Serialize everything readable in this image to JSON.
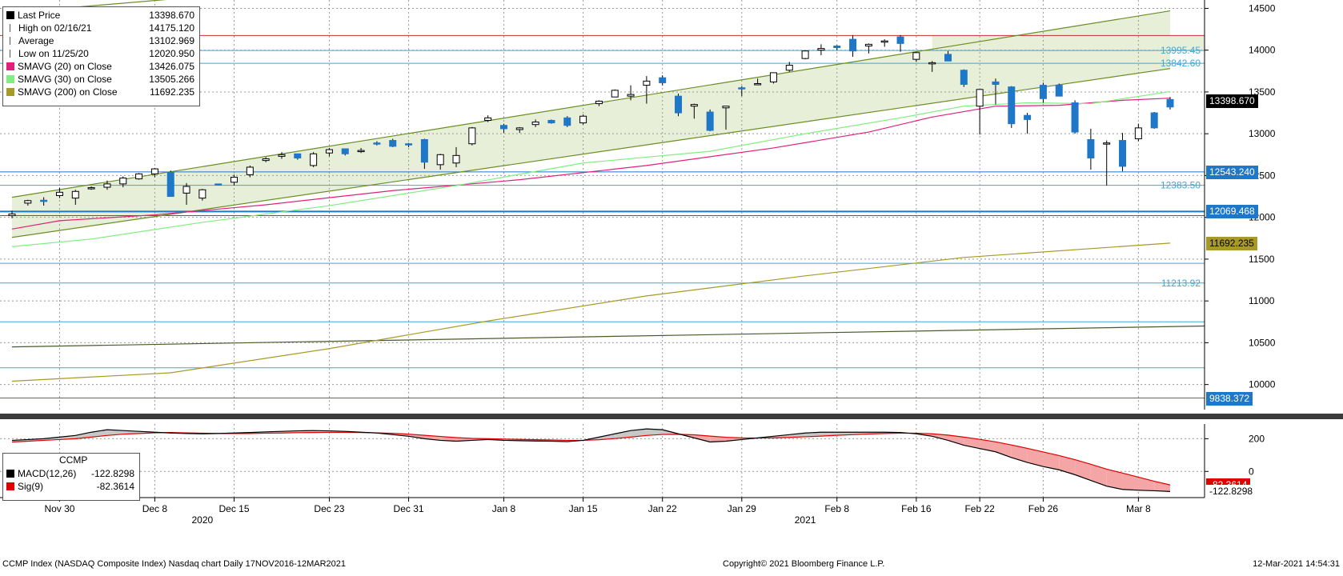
{
  "legend_main": {
    "rows": [
      {
        "label": "Last Price",
        "value": "13398.670",
        "swatch": "#000000",
        "marker": "square"
      },
      {
        "label": "High on 02/16/21",
        "value": "14175.120",
        "swatch": "#555555",
        "marker": "high"
      },
      {
        "label": "Average",
        "value": "13102.969",
        "swatch": "#555555",
        "marker": "avg"
      },
      {
        "label": "Low on 11/25/20",
        "value": "12020.950",
        "swatch": "#555555",
        "marker": "low"
      },
      {
        "label": "SMAVG (20)  on Close",
        "value": "13426.075",
        "swatch": "#e0207a",
        "marker": "square"
      },
      {
        "label": "SMAVG (30)  on Close",
        "value": "13505.266",
        "swatch": "#80ee80",
        "marker": "square"
      },
      {
        "label": "SMAVG (200)  on Close",
        "value": "11692.235",
        "swatch": "#a89a28",
        "marker": "square"
      }
    ]
  },
  "legend_macd": {
    "title": "CCMP",
    "rows": [
      {
        "label": "MACD(12,26)",
        "value": "-122.8298",
        "swatch": "#000000"
      },
      {
        "label": "Sig(9)",
        "value": "-82.3614",
        "swatch": "#e00000"
      }
    ]
  },
  "axis_tags": [
    {
      "text": "13398.670",
      "value": 13398.67,
      "bg": "#000000",
      "fg": "#ffffff"
    },
    {
      "text": "12543.240",
      "value": 12543.24,
      "bg": "#1f77c8",
      "fg": "#ffffff"
    },
    {
      "text": "12069.468",
      "value": 12069.468,
      "bg": "#1f77c8",
      "fg": "#ffffff"
    },
    {
      "text": "11692.235",
      "value": 11692.235,
      "bg": "#a89a28",
      "fg": "#000000"
    },
    {
      "text": "9838.372",
      "value": 9838.372,
      "bg": "#1f77c8",
      "fg": "#ffffff"
    }
  ],
  "level_labels": [
    {
      "text": "13995.45",
      "value": 13995.45
    },
    {
      "text": "13842.60",
      "value": 13842.6
    },
    {
      "text": "12383.50",
      "value": 12383.5
    },
    {
      "text": "11213.92",
      "value": 11213.92
    }
  ],
  "macd_axis_tags": [
    {
      "text": "-82.3614",
      "value": -82.3614,
      "bg": "#e00000",
      "fg": "#ffffff"
    },
    {
      "text": "-122.8298",
      "value": -122.8298,
      "bg": "#ffffff",
      "fg": "#000000"
    }
  ],
  "footer": {
    "left": "CCMP Index (NASDAQ Composite Index) Nasdaq chart  Daily 17NOV2016-12MAR2021",
    "center": "Copyright© 2021 Bloomberg Finance L.P.",
    "right": "12-Mar-2021  14:54:31"
  },
  "chart_data": [
    {
      "type": "candlestick",
      "title": "CCMP Index (NASDAQ Composite Index) Nasdaq chart",
      "ylim": [
        9700,
        14600
      ],
      "yticks": [
        10000,
        10500,
        11000,
        11500,
        12000,
        12500,
        13000,
        13500,
        14000,
        14500
      ],
      "xlabels": [
        "Nov 30",
        "Dec 8",
        "Dec 15",
        "Dec 23",
        "Dec 31",
        "Jan 8",
        "Jan 15",
        "Jan 22",
        "Jan 29",
        "Feb 8",
        "Feb 16",
        "Feb 22",
        "Feb 26",
        "Mar 8"
      ],
      "xlabel_index": [
        3,
        9,
        14,
        20,
        25,
        31,
        36,
        41,
        46,
        52,
        57,
        61,
        65,
        71
      ],
      "year_labels": [
        {
          "text": "2020",
          "index": 12
        },
        {
          "text": "2021",
          "index": 50
        }
      ],
      "grid": true,
      "legend": "top-left",
      "up_color": "#ffffff",
      "down_color": "#1f77c8",
      "candles": [
        [
          12020,
          12080,
          11990,
          12040
        ],
        [
          12170,
          12210,
          12140,
          12200
        ],
        [
          12205,
          12240,
          12140,
          12190
        ],
        [
          12260,
          12355,
          12230,
          12300
        ],
        [
          12230,
          12330,
          12150,
          12310
        ],
        [
          12350,
          12370,
          12330,
          12355
        ],
        [
          12360,
          12440,
          12330,
          12400
        ],
        [
          12400,
          12490,
          12360,
          12470
        ],
        [
          12460,
          12530,
          12450,
          12520
        ],
        [
          12520,
          12590,
          12480,
          12580
        ],
        [
          12540,
          12560,
          12280,
          12250
        ],
        [
          12290,
          12410,
          12150,
          12370
        ],
        [
          12230,
          12340,
          12200,
          12330
        ],
        [
          12400,
          12400,
          12380,
          12390
        ],
        [
          12420,
          12510,
          12380,
          12480
        ],
        [
          12510,
          12620,
          12480,
          12600
        ],
        [
          12680,
          12720,
          12660,
          12700
        ],
        [
          12730,
          12780,
          12700,
          12750
        ],
        [
          12760,
          12760,
          12690,
          12710
        ],
        [
          12620,
          12780,
          12600,
          12760
        ],
        [
          12770,
          12830,
          12730,
          12810
        ],
        [
          12820,
          12820,
          12740,
          12760
        ],
        [
          12790,
          12830,
          12770,
          12800
        ],
        [
          12890,
          12910,
          12860,
          12880
        ],
        [
          12920,
          12940,
          12840,
          12850
        ],
        [
          12880,
          12890,
          12840,
          12870
        ],
        [
          12930,
          12940,
          12580,
          12660
        ],
        [
          12630,
          12760,
          12570,
          12750
        ],
        [
          12650,
          12840,
          12600,
          12740
        ],
        [
          12880,
          13080,
          12860,
          13070
        ],
        [
          13160,
          13220,
          13140,
          13190
        ],
        [
          13100,
          13120,
          13010,
          13060
        ],
        [
          13050,
          13080,
          13010,
          13070
        ],
        [
          13110,
          13170,
          13080,
          13140
        ],
        [
          13160,
          13170,
          13120,
          13130
        ],
        [
          13190,
          13210,
          13080,
          13100
        ],
        [
          13130,
          13230,
          13110,
          13210
        ],
        [
          13360,
          13400,
          13330,
          13390
        ],
        [
          13440,
          13530,
          13440,
          13520
        ],
        [
          13450,
          13580,
          13400,
          13470
        ],
        [
          13580,
          13690,
          13360,
          13630
        ],
        [
          13670,
          13700,
          13580,
          13610
        ],
        [
          13450,
          13480,
          13210,
          13250
        ],
        [
          13330,
          13360,
          13180,
          13350
        ],
        [
          13260,
          13290,
          13030,
          13040
        ],
        [
          13310,
          13330,
          13050,
          13330
        ],
        [
          13550,
          13570,
          13450,
          13540
        ],
        [
          13590,
          13660,
          13580,
          13600
        ],
        [
          13620,
          13720,
          13600,
          13730
        ],
        [
          13760,
          13860,
          13740,
          13820
        ],
        [
          13900,
          13990,
          13890,
          13990
        ],
        [
          14000,
          14070,
          13940,
          14020
        ],
        [
          14050,
          14060,
          14000,
          14030
        ],
        [
          14130,
          14180,
          13920,
          13990
        ],
        [
          14050,
          14080,
          13960,
          14070
        ],
        [
          14100,
          14130,
          14040,
          14110
        ],
        [
          14160,
          14180,
          13980,
          14080
        ],
        [
          13890,
          13980,
          13860,
          13970
        ],
        [
          13840,
          13870,
          13740,
          13850
        ],
        [
          13950,
          13990,
          13880,
          13870
        ],
        [
          13760,
          13770,
          13560,
          13590
        ],
        [
          13330,
          13520,
          12990,
          13530
        ],
        [
          13620,
          13660,
          13350,
          13590
        ],
        [
          13560,
          13570,
          13070,
          13120
        ],
        [
          13220,
          13250,
          13000,
          13170
        ],
        [
          13580,
          13610,
          13370,
          13420
        ],
        [
          13580,
          13600,
          13450,
          13450
        ],
        [
          13370,
          13400,
          13000,
          13020
        ],
        [
          12930,
          13060,
          12570,
          12710
        ],
        [
          12880,
          12920,
          12380,
          12890
        ],
        [
          12920,
          13010,
          12550,
          12610
        ],
        [
          12940,
          13120,
          12910,
          13070
        ],
        [
          13250,
          13260,
          13060,
          13070
        ],
        [
          13410,
          13440,
          13290,
          13320
        ]
      ],
      "series": [
        {
          "name": "SMAVG (20)  on Close",
          "color": "#e0207a",
          "points": [
            [
              0,
              11860
            ],
            [
              3,
              11960
            ],
            [
              9,
              12030
            ],
            [
              16,
              12150
            ],
            [
              24,
              12320
            ],
            [
              32,
              12450
            ],
            [
              40,
              12620
            ],
            [
              48,
              12830
            ],
            [
              54,
              13020
            ],
            [
              58,
              13200
            ],
            [
              62,
              13330
            ],
            [
              66,
              13340
            ],
            [
              70,
              13400
            ],
            [
              73,
              13426
            ]
          ]
        },
        {
          "name": "SMAVG (30)  on Close",
          "color": "#80ee80",
          "points": [
            [
              0,
              11650
            ],
            [
              5,
              11740
            ],
            [
              12,
              11940
            ],
            [
              20,
              12140
            ],
            [
              28,
              12380
            ],
            [
              36,
              12650
            ],
            [
              44,
              12790
            ],
            [
              50,
              13000
            ],
            [
              56,
              13190
            ],
            [
              60,
              13330
            ],
            [
              64,
              13370
            ],
            [
              68,
              13360
            ],
            [
              73,
              13505
            ]
          ]
        },
        {
          "name": "SMAVG (200)  on Close",
          "color": "#a89a28",
          "points": [
            [
              0,
              10040
            ],
            [
              10,
              10140
            ],
            [
              20,
              10430
            ],
            [
              30,
              10760
            ],
            [
              40,
              11060
            ],
            [
              50,
              11300
            ],
            [
              60,
              11520
            ],
            [
              73,
              11692
            ]
          ]
        }
      ],
      "horizontal_levels": [
        {
          "value": 12069.468,
          "color": "#1f77c8"
        },
        {
          "value": 12543.24,
          "color": "#1f77c8"
        },
        {
          "value": 12383.5,
          "color": "#3aa8d8"
        },
        {
          "value": 13995.45,
          "color": "#3aa8d8"
        },
        {
          "value": 13842.6,
          "color": "#3aa8d8"
        },
        {
          "value": 11213.92,
          "color": "#3aa8d8"
        },
        {
          "value": 11450,
          "color": "#3aa8d8"
        },
        {
          "value": 10750,
          "color": "#3aa8d8"
        },
        {
          "value": 10200,
          "color": "#3aa8d8"
        },
        {
          "value": 9838.372,
          "color": "#1f77c8"
        },
        {
          "value": 14175.12,
          "color": "#c03030"
        },
        {
          "value": 12020.95,
          "color": "#c03030"
        }
      ],
      "channel": {
        "color": "#6b8e23",
        "fill": "#e8efd8",
        "upper": [
          [
            0,
            12240
          ],
          [
            73,
            14470
          ]
        ],
        "lower": [
          [
            0,
            11760
          ],
          [
            73,
            13780
          ]
        ],
        "outer": [
          [
            0,
            14450
          ],
          [
            25,
            14850
          ]
        ],
        "support": [
          [
            0,
            10450
          ],
          [
            73,
            10700
          ]
        ]
      }
    },
    {
      "type": "area",
      "title": "CCMP",
      "ylim": [
        -160,
        290
      ],
      "yticks": [
        0,
        200
      ],
      "series": [
        {
          "name": "MACD(12,26)",
          "color": "#000000",
          "values": [
            190,
            195,
            200,
            210,
            220,
            240,
            255,
            250,
            245,
            240,
            235,
            232,
            230,
            232,
            235,
            238,
            242,
            245,
            248,
            250,
            248,
            245,
            240,
            235,
            225,
            215,
            200,
            190,
            185,
            190,
            195,
            190,
            188,
            186,
            185,
            182,
            190,
            210,
            230,
            250,
            260,
            255,
            230,
            205,
            180,
            185,
            195,
            205,
            215,
            225,
            235,
            240,
            240,
            240,
            240,
            240,
            238,
            230,
            215,
            190,
            160,
            140,
            120,
            85,
            55,
            30,
            10,
            -20,
            -55,
            -90,
            -110,
            -115,
            -118,
            -122.8
          ]
        },
        {
          "name": "Sig(9)",
          "color": "#e00000",
          "values": [
            180,
            185,
            190,
            195,
            200,
            210,
            220,
            228,
            232,
            236,
            238,
            236,
            234,
            232,
            232,
            232,
            234,
            235,
            237,
            238,
            239,
            239,
            238,
            236,
            233,
            228,
            221,
            214,
            207,
            202,
            200,
            198,
            196,
            194,
            192,
            190,
            190,
            194,
            201,
            210,
            220,
            226,
            227,
            224,
            216,
            209,
            205,
            204,
            205,
            208,
            212,
            216,
            221,
            225,
            229,
            232,
            234,
            234,
            230,
            222,
            210,
            196,
            181,
            162,
            141,
            119,
            97,
            72,
            44,
            14,
            -10,
            -35,
            -60,
            -82.4
          ]
        }
      ]
    }
  ]
}
